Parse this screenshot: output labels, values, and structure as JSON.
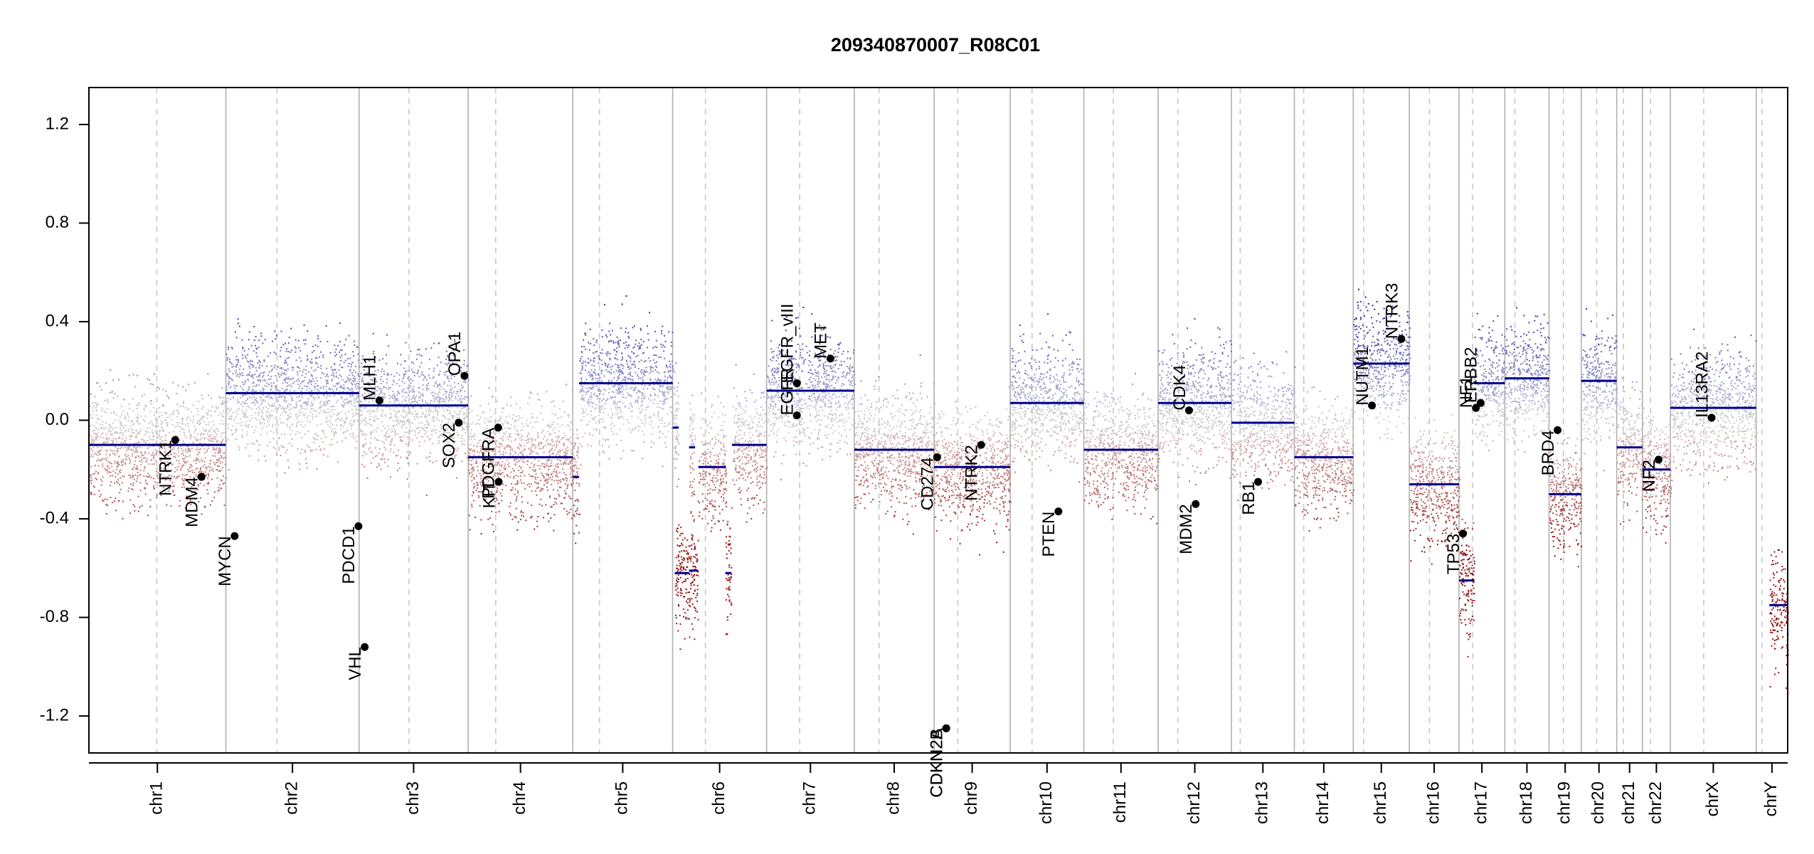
{
  "chart_data": {
    "type": "scatter",
    "title": "209340870007_R08C01",
    "xlabel": "",
    "ylabel": "",
    "ylim": [
      -1.35,
      1.35
    ],
    "yticks": [
      -1.2,
      -0.8,
      -0.4,
      0.0,
      0.4,
      0.8,
      1.2
    ],
    "ytick_labels": [
      "-1.2",
      "-0.8",
      "-0.4",
      "0.0",
      "0.4",
      "0.8",
      "1.2"
    ],
    "grid": false,
    "colors": {
      "gain": "#00008b",
      "loss": "#8b0000",
      "neutral": "#cccccc",
      "segment": "#00008b",
      "marker": "#000000"
    },
    "chromosomes": [
      {
        "name": "chr1",
        "start": 0.0,
        "end": 248.96,
        "centromere": 123.4
      },
      {
        "name": "chr2",
        "start": 248.96,
        "end": 491.15,
        "centromere": 341.9
      },
      {
        "name": "chr3",
        "start": 491.15,
        "end": 689.45,
        "centromere": 582.0
      },
      {
        "name": "chr4",
        "start": 689.45,
        "end": 879.67,
        "centromere": 739.5
      },
      {
        "name": "chr5",
        "start": 879.67,
        "end": 1061.21,
        "centromere": 928.2
      },
      {
        "name": "chr6",
        "start": 1061.21,
        "end": 1232.02,
        "centromere": 1120.8
      },
      {
        "name": "chr7",
        "start": 1232.02,
        "end": 1391.37,
        "centromere": 1292.1
      },
      {
        "name": "chr8",
        "start": 1391.37,
        "end": 1536.51,
        "centromere": 1436.4
      },
      {
        "name": "chr9",
        "start": 1536.51,
        "end": 1674.9,
        "centromere": 1579.5
      },
      {
        "name": "chr10",
        "start": 1674.9,
        "end": 1808.7,
        "centromere": 1714.6
      },
      {
        "name": "chr11",
        "start": 1808.7,
        "end": 1943.79,
        "centromere": 1862.3
      },
      {
        "name": "chr12",
        "start": 1943.79,
        "end": 2077.06,
        "centromere": 1979.6
      },
      {
        "name": "chr13",
        "start": 2077.06,
        "end": 2191.42,
        "centromere": 2093.0
      },
      {
        "name": "chr14",
        "start": 2191.42,
        "end": 2298.46,
        "centromere": 2208.4
      },
      {
        "name": "chr15",
        "start": 2298.46,
        "end": 2400.45,
        "centromere": 2317.4
      },
      {
        "name": "chr16",
        "start": 2400.45,
        "end": 2490.78,
        "centromere": 2437.0
      },
      {
        "name": "chr17",
        "start": 2490.78,
        "end": 2574.04,
        "centromere": 2515.5
      },
      {
        "name": "chr18",
        "start": 2574.04,
        "end": 2654.41,
        "centromere": 2592.3
      },
      {
        "name": "chr19",
        "start": 2654.41,
        "end": 2713.03,
        "centromere": 2680.5
      },
      {
        "name": "chr20",
        "start": 2713.03,
        "end": 2777.47,
        "centromere": 2741.0
      },
      {
        "name": "chr21",
        "start": 2777.47,
        "end": 2824.18,
        "centromere": 2789.7
      },
      {
        "name": "chr22",
        "start": 2824.18,
        "end": 2875.0,
        "centromere": 2839.0
      },
      {
        "name": "chrX",
        "start": 2875.0,
        "end": 3031.04,
        "centromere": 2935.6
      },
      {
        "name": "chrY",
        "start": 3031.04,
        "end": 3088.27,
        "centromere": 3041.5
      }
    ],
    "segments": [
      {
        "x0": 0,
        "x1": 248.96,
        "y": -0.1
      },
      {
        "x0": 248.96,
        "x1": 491.15,
        "y": 0.11
      },
      {
        "x0": 491.15,
        "x1": 689.45,
        "y": 0.06
      },
      {
        "x0": 689.45,
        "x1": 879.67,
        "y": -0.15
      },
      {
        "x0": 879.67,
        "x1": 891.0,
        "y": -0.23
      },
      {
        "x0": 891.0,
        "x1": 1061.21,
        "y": 0.15
      },
      {
        "x0": 1061.21,
        "x1": 1072.0,
        "y": -0.03
      },
      {
        "x0": 1065.0,
        "x1": 1091.0,
        "y": -0.62
      },
      {
        "x0": 1091.0,
        "x1": 1107.0,
        "y": -0.61
      },
      {
        "x0": 1091.0,
        "x1": 1102.0,
        "y": -0.11
      },
      {
        "x0": 1108.0,
        "x1": 1158.0,
        "y": -0.19
      },
      {
        "x0": 1157.0,
        "x1": 1168.0,
        "y": -0.62
      },
      {
        "x0": 1169.0,
        "x1": 1232.02,
        "y": -0.1
      },
      {
        "x0": 1232.02,
        "x1": 1391.37,
        "y": 0.12
      },
      {
        "x0": 1391.37,
        "x1": 1536.51,
        "y": -0.12
      },
      {
        "x0": 1536.51,
        "x1": 1674.9,
        "y": -0.19
      },
      {
        "x0": 1674.9,
        "x1": 1808.7,
        "y": 0.07
      },
      {
        "x0": 1808.7,
        "x1": 1943.79,
        "y": -0.12
      },
      {
        "x0": 1943.79,
        "x1": 2077.06,
        "y": 0.07
      },
      {
        "x0": 2077.06,
        "x1": 2191.42,
        "y": -0.01
      },
      {
        "x0": 2191.42,
        "x1": 2298.46,
        "y": -0.15
      },
      {
        "x0": 2298.46,
        "x1": 2400.45,
        "y": 0.23
      },
      {
        "x0": 2400.45,
        "x1": 2490.78,
        "y": -0.26
      },
      {
        "x0": 2490.78,
        "x1": 2518.0,
        "y": -0.65
      },
      {
        "x0": 2518.0,
        "x1": 2574.04,
        "y": 0.15
      },
      {
        "x0": 2574.04,
        "x1": 2654.41,
        "y": 0.17
      },
      {
        "x0": 2654.41,
        "x1": 2713.03,
        "y": -0.3
      },
      {
        "x0": 2713.03,
        "x1": 2777.47,
        "y": 0.16
      },
      {
        "x0": 2777.47,
        "x1": 2824.18,
        "y": -0.11
      },
      {
        "x0": 2824.18,
        "x1": 2875.0,
        "y": -0.2
      },
      {
        "x0": 2875.0,
        "x1": 3031.04,
        "y": 0.05
      },
      {
        "x0": 3055.0,
        "x1": 3088.27,
        "y": -0.75
      }
    ],
    "genes": [
      {
        "name": "NTRK1",
        "x": 156.8,
        "y": -0.08
      },
      {
        "name": "MDM4",
        "x": 204.5,
        "y": -0.23
      },
      {
        "name": "MYCN",
        "x": 264.9,
        "y": -0.47
      },
      {
        "name": "PDCD1",
        "x": 490.0,
        "y": -0.43
      },
      {
        "name": "VHL",
        "x": 501.3,
        "y": -0.92
      },
      {
        "name": "MLH1",
        "x": 528.1,
        "y": 0.08
      },
      {
        "name": "SOX2",
        "x": 672.3,
        "y": -0.01
      },
      {
        "name": "OPA1",
        "x": 682.7,
        "y": 0.18
      },
      {
        "name": "PDGFRA",
        "x": 744.0,
        "y": -0.03
      },
      {
        "name": "KIT",
        "x": 744.9,
        "y": -0.25
      },
      {
        "name": "EGFR",
        "x": 1287.0,
        "y": 0.02
      },
      {
        "name": "EGFR_vIII",
        "x": 1287.1,
        "y": 0.15
      },
      {
        "name": "MET",
        "x": 1348.0,
        "y": 0.25
      },
      {
        "name": "CD274",
        "x": 1542.0,
        "y": -0.15
      },
      {
        "name": "CDKN2A",
        "x": 1558.5,
        "y": -1.25
      },
      {
        "name": "CDKN2B",
        "x": 1558.6,
        "y": -1.25
      },
      {
        "name": "NTRK2",
        "x": 1622.0,
        "y": -0.1
      },
      {
        "name": "PTEN",
        "x": 1762.5,
        "y": -0.37
      },
      {
        "name": "CDK4",
        "x": 2000.0,
        "y": 0.04
      },
      {
        "name": "MDM2",
        "x": 2012.0,
        "y": -0.34
      },
      {
        "name": "RB1",
        "x": 2125.5,
        "y": -0.25
      },
      {
        "name": "NUTM1",
        "x": 2332.5,
        "y": 0.06
      },
      {
        "name": "NTRK3",
        "x": 2386.0,
        "y": 0.33
      },
      {
        "name": "TP53",
        "x": 2498.0,
        "y": -0.46
      },
      {
        "name": "NF1",
        "x": 2521.5,
        "y": 0.05
      },
      {
        "name": "ERBB2",
        "x": 2530.0,
        "y": 0.07
      },
      {
        "name": "BRD4",
        "x": 2670.0,
        "y": -0.04
      },
      {
        "name": "NF2",
        "x": 2853.5,
        "y": -0.16
      },
      {
        "name": "IL13RA2",
        "x": 2950.0,
        "y": 0.01
      }
    ]
  }
}
